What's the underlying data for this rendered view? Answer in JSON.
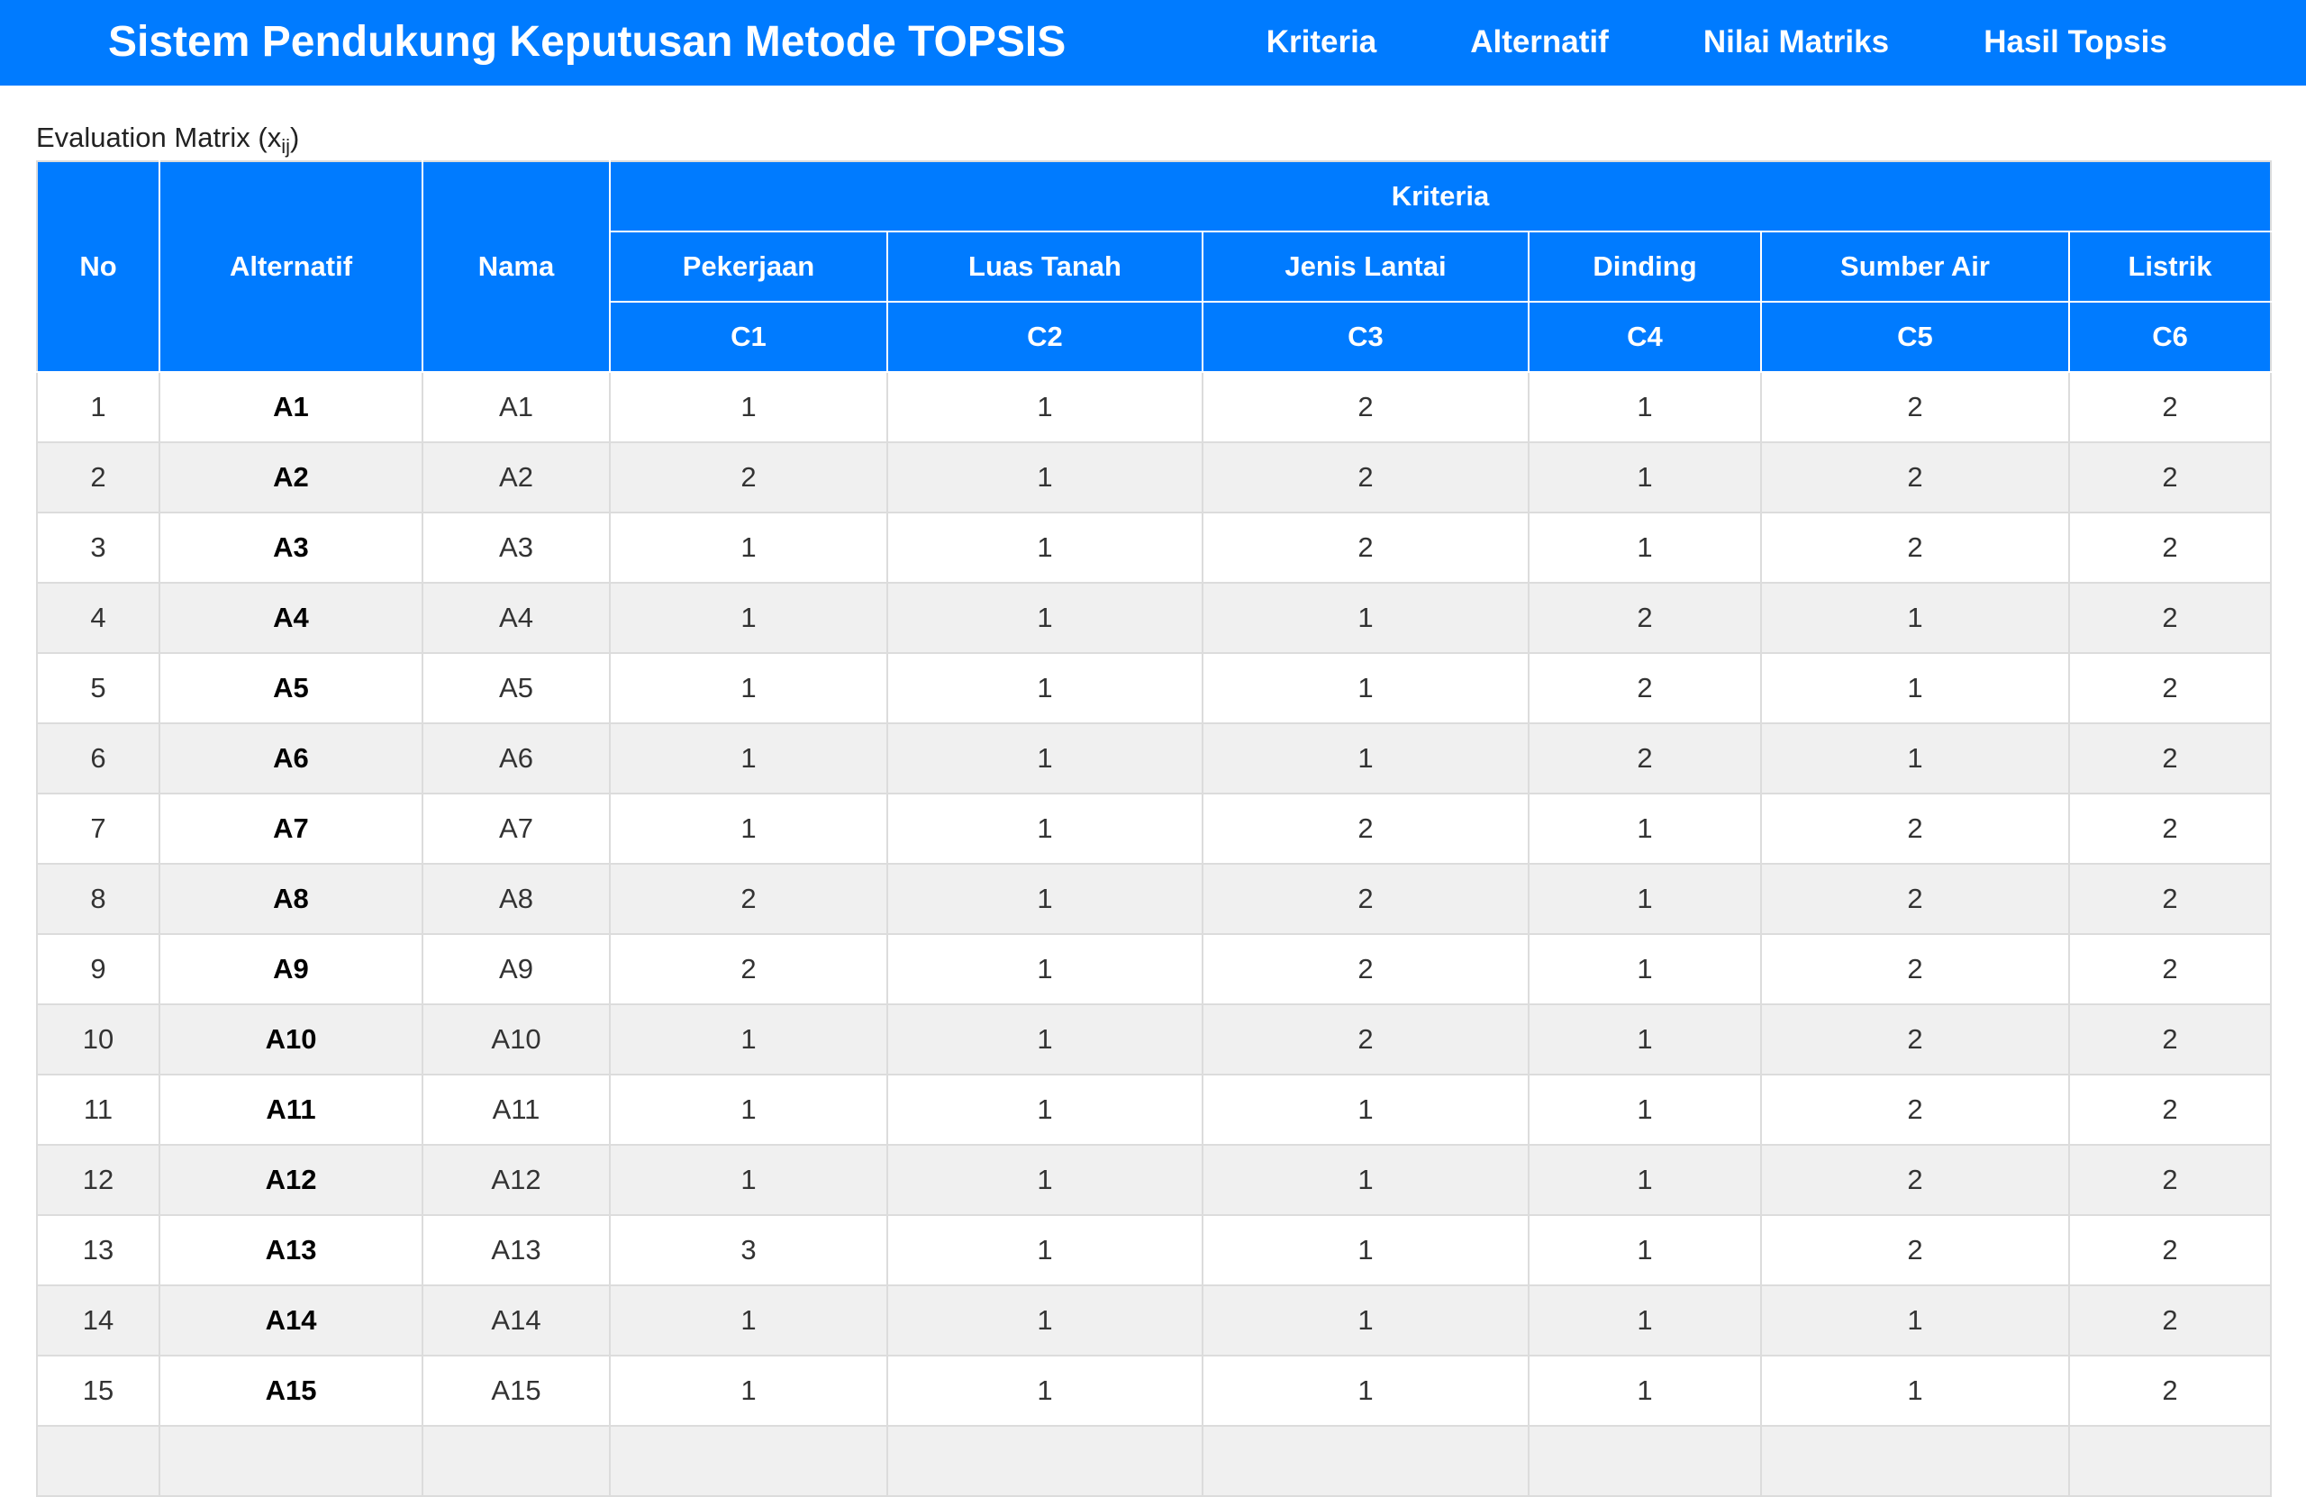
{
  "navbar": {
    "brand": "Sistem Pendukung Keputusan Metode TOPSIS",
    "items": [
      "Kriteria",
      "Alternatif",
      "Nilai Matriks",
      "Hasil Topsis"
    ],
    "background": "#007bff"
  },
  "caption": {
    "text": "Evaluation Matrix (x",
    "sub": "ij",
    "close": ")"
  },
  "table": {
    "headers": {
      "no": "No",
      "alternatif": "Alternatif",
      "nama": "Nama",
      "group": "Kriteria",
      "criteria": [
        {
          "name": "Pekerjaan",
          "code": "C1"
        },
        {
          "name": "Luas Tanah",
          "code": "C2"
        },
        {
          "name": "Jenis Lantai",
          "code": "C3"
        },
        {
          "name": "Dinding",
          "code": "C4"
        },
        {
          "name": "Sumber Air",
          "code": "C5"
        },
        {
          "name": "Listrik",
          "code": "C6"
        }
      ]
    },
    "rows": [
      {
        "no": "1",
        "alternatif": "A1",
        "nama": "A1",
        "values": [
          "1",
          "1",
          "2",
          "1",
          "2",
          "2"
        ]
      },
      {
        "no": "2",
        "alternatif": "A2",
        "nama": "A2",
        "values": [
          "2",
          "1",
          "2",
          "1",
          "2",
          "2"
        ]
      },
      {
        "no": "3",
        "alternatif": "A3",
        "nama": "A3",
        "values": [
          "1",
          "1",
          "2",
          "1",
          "2",
          "2"
        ]
      },
      {
        "no": "4",
        "alternatif": "A4",
        "nama": "A4",
        "values": [
          "1",
          "1",
          "1",
          "2",
          "1",
          "2"
        ]
      },
      {
        "no": "5",
        "alternatif": "A5",
        "nama": "A5",
        "values": [
          "1",
          "1",
          "1",
          "2",
          "1",
          "2"
        ]
      },
      {
        "no": "6",
        "alternatif": "A6",
        "nama": "A6",
        "values": [
          "1",
          "1",
          "1",
          "2",
          "1",
          "2"
        ]
      },
      {
        "no": "7",
        "alternatif": "A7",
        "nama": "A7",
        "values": [
          "1",
          "1",
          "2",
          "1",
          "2",
          "2"
        ]
      },
      {
        "no": "8",
        "alternatif": "A8",
        "nama": "A8",
        "values": [
          "2",
          "1",
          "2",
          "1",
          "2",
          "2"
        ]
      },
      {
        "no": "9",
        "alternatif": "A9",
        "nama": "A9",
        "values": [
          "2",
          "1",
          "2",
          "1",
          "2",
          "2"
        ]
      },
      {
        "no": "10",
        "alternatif": "A10",
        "nama": "A10",
        "values": [
          "1",
          "1",
          "2",
          "1",
          "2",
          "2"
        ]
      },
      {
        "no": "11",
        "alternatif": "A11",
        "nama": "A11",
        "values": [
          "1",
          "1",
          "1",
          "1",
          "2",
          "2"
        ]
      },
      {
        "no": "12",
        "alternatif": "A12",
        "nama": "A12",
        "values": [
          "1",
          "1",
          "1",
          "1",
          "2",
          "2"
        ]
      },
      {
        "no": "13",
        "alternatif": "A13",
        "nama": "A13",
        "values": [
          "3",
          "1",
          "1",
          "1",
          "2",
          "2"
        ]
      },
      {
        "no": "14",
        "alternatif": "A14",
        "nama": "A14",
        "values": [
          "1",
          "1",
          "1",
          "1",
          "1",
          "2"
        ]
      },
      {
        "no": "15",
        "alternatif": "A15",
        "nama": "A15",
        "values": [
          "1",
          "1",
          "1",
          "1",
          "1",
          "2"
        ]
      },
      {
        "no": "",
        "alternatif": "",
        "nama": "",
        "values": [
          "",
          "",
          "",
          "",
          "",
          ""
        ]
      }
    ]
  }
}
